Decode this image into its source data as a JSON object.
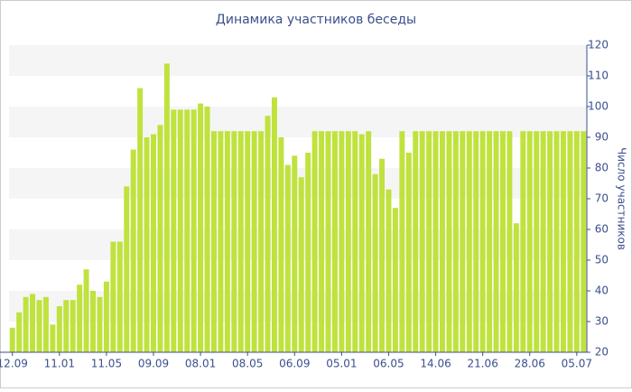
{
  "chart_data": {
    "type": "bar",
    "title": "Динамика участников беседы",
    "y_label": "Число участников",
    "categories": [
      "12.09",
      null,
      null,
      null,
      null,
      null,
      null,
      "11.01",
      null,
      null,
      null,
      null,
      null,
      null,
      "11.05",
      null,
      null,
      null,
      null,
      null,
      null,
      "09.09",
      null,
      null,
      null,
      null,
      null,
      null,
      "08.01",
      null,
      null,
      null,
      null,
      null,
      null,
      "08.05",
      null,
      null,
      null,
      null,
      null,
      null,
      "06.09",
      null,
      null,
      null,
      null,
      null,
      null,
      "05.01",
      null,
      null,
      null,
      null,
      null,
      null,
      "06.05",
      null,
      null,
      null,
      null,
      null,
      null,
      "14.06",
      null,
      null,
      null,
      null,
      null,
      null,
      "21.06",
      null,
      null,
      null,
      null,
      null,
      null,
      "28.06",
      null,
      null,
      null,
      null,
      null,
      null,
      "05.07",
      null
    ],
    "values": [
      28,
      33,
      38,
      39,
      37,
      38,
      29,
      35,
      37,
      37,
      42,
      47,
      40,
      38,
      43,
      56,
      56,
      74,
      86,
      106,
      90,
      91,
      94,
      114,
      99,
      99,
      99,
      99,
      101,
      100,
      92,
      92,
      92,
      92,
      92,
      92,
      92,
      92,
      97,
      103,
      90,
      81,
      84,
      77,
      85,
      92,
      92,
      92,
      92,
      92,
      92,
      92,
      91,
      92,
      78,
      83,
      73,
      67,
      92,
      85,
      92,
      92,
      92,
      92,
      92,
      92,
      92,
      92,
      92,
      92,
      92,
      92,
      92,
      92,
      92,
      62,
      92,
      92,
      92,
      92,
      92,
      92,
      92,
      92,
      92,
      92
    ],
    "color": "#bfe23d",
    "ylim": [
      20,
      120
    ],
    "yticks": [
      20,
      30,
      40,
      50,
      60,
      70,
      80,
      90,
      100,
      110,
      120
    ],
    "grid": true
  }
}
